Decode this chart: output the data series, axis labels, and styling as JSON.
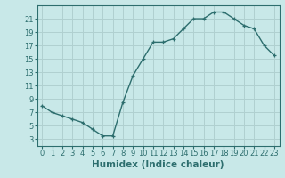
{
  "x": [
    0,
    1,
    2,
    3,
    4,
    5,
    6,
    7,
    8,
    9,
    10,
    11,
    12,
    13,
    14,
    15,
    16,
    17,
    18,
    19,
    20,
    21,
    22,
    23
  ],
  "y": [
    8,
    7,
    6.5,
    6,
    5.5,
    4.5,
    3.5,
    3.5,
    8.5,
    12.5,
    15,
    17.5,
    17.5,
    18,
    19.5,
    21,
    21,
    22,
    22,
    21,
    20,
    19.5,
    17,
    15.5
  ],
  "line_color": "#2d6e6e",
  "marker_color": "#2d6e6e",
  "bg_color": "#c8e8e8",
  "grid_color": "#b0d0d0",
  "xlabel": "Humidex (Indice chaleur)",
  "xlabel_fontsize": 7.5,
  "ytick_labels": [
    3,
    5,
    7,
    9,
    11,
    13,
    15,
    17,
    19,
    21
  ],
  "xtick_labels": [
    0,
    1,
    2,
    3,
    4,
    5,
    6,
    7,
    8,
    9,
    10,
    11,
    12,
    13,
    14,
    15,
    16,
    17,
    18,
    19,
    20,
    21,
    22,
    23
  ],
  "ylim": [
    2,
    23
  ],
  "xlim": [
    -0.5,
    23.5
  ],
  "tick_fontsize": 6.0,
  "linewidth": 1.0,
  "markersize": 3.0
}
